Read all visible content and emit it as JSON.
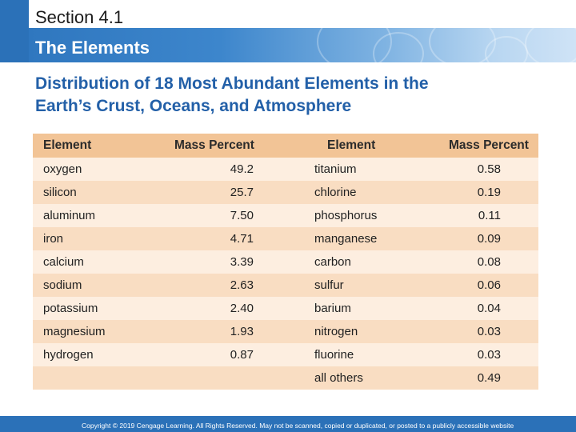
{
  "section": "Section 4.1",
  "title": "The Elements",
  "heading_line1": "Distribution of 18 Most Abundant Elements in the",
  "heading_line2": "Earth’s Crust, Oceans, and Atmosphere",
  "table": {
    "headers": [
      "Element",
      "Mass Percent",
      "Element",
      "Mass Percent"
    ],
    "rows": [
      [
        "oxygen",
        "49.2",
        "titanium",
        "0.58"
      ],
      [
        "silicon",
        "25.7",
        "chlorine",
        "0.19"
      ],
      [
        "aluminum",
        "7.50",
        "phosphorus",
        "0.11"
      ],
      [
        "iron",
        "4.71",
        "manganese",
        "0.09"
      ],
      [
        "calcium",
        "3.39",
        "carbon",
        "0.08"
      ],
      [
        "sodium",
        "2.63",
        "sulfur",
        "0.06"
      ],
      [
        "potassium",
        "2.40",
        "barium",
        "0.04"
      ],
      [
        "magnesium",
        "1.93",
        "nitrogen",
        "0.03"
      ],
      [
        "hydrogen",
        "0.87",
        "fluorine",
        "0.03"
      ],
      [
        "",
        "",
        "all others",
        "0.49"
      ]
    ]
  },
  "copyright": "Copyright © 2019 Cengage Learning. All Rights Reserved. May not be scanned, copied or duplicated, or posted to a publicly accessible website",
  "colors": {
    "blue": "#2b71b8",
    "heading": "#2360a8",
    "header_row": "#f2c496",
    "row_light": "#fdeee0",
    "row_dark": "#f9ddc2"
  }
}
